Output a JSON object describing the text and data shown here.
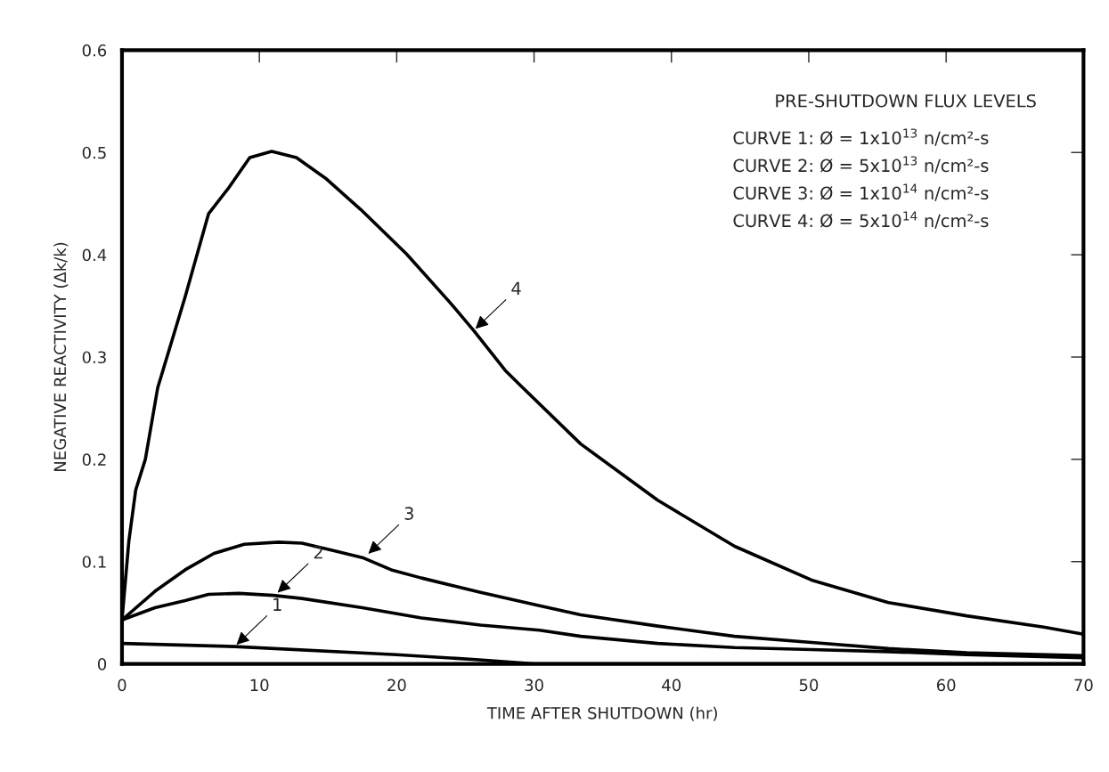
{
  "chart_data": {
    "type": "line",
    "xlabel": "TIME AFTER SHUTDOWN (hr)",
    "ylabel": "NEGATIVE REACTIVITY (Δk/k)",
    "xlim": [
      0,
      70
    ],
    "xticks": [
      0,
      10,
      20,
      30,
      40,
      50,
      60,
      70
    ],
    "ylim": [
      0,
      0.6
    ],
    "yticks": [
      0,
      0.1,
      0.2,
      0.3,
      0.4,
      0.5,
      0.6
    ],
    "grid": false,
    "legend": false,
    "marker": "none",
    "line_style": "solid",
    "series": [
      {
        "color": "#000000",
        "x": [
          0,
          8.2,
          20,
          26,
          30,
          70
        ],
        "values": [
          0.02,
          0.017,
          0.009,
          0.004,
          0,
          0
        ]
      },
      {
        "color": "#000000",
        "x": [
          0,
          2.4,
          4.6,
          6.3,
          8.5,
          11,
          13.1,
          17.5,
          21.8,
          26.1,
          30.4,
          33.4,
          39,
          44.6,
          50.2,
          55.8,
          61.5,
          70
        ],
        "values": [
          0.043,
          0.055,
          0.062,
          0.068,
          0.069,
          0.067,
          0.064,
          0.055,
          0.045,
          0.038,
          0.033,
          0.027,
          0.02,
          0.016,
          0.014,
          0.012,
          0.009,
          0.006
        ]
      },
      {
        "color": "#000000",
        "x": [
          0,
          2.4,
          4.6,
          6.7,
          8.9,
          11.4,
          13.1,
          15.3,
          17.5,
          19.6,
          21.8,
          26.1,
          30.4,
          33.4,
          39,
          44.6,
          50.2,
          55.8,
          61.5,
          70
        ],
        "values": [
          0.043,
          0.071,
          0.092,
          0.108,
          0.117,
          0.119,
          0.118,
          0.111,
          0.104,
          0.092,
          0.084,
          0.07,
          0.057,
          0.048,
          0.037,
          0.027,
          0.021,
          0.015,
          0.011,
          0.008
        ]
      },
      {
        "color": "#000000",
        "x": [
          0,
          0.5,
          1,
          1.7,
          2.6,
          4.6,
          6.3,
          7.8,
          9.3,
          10.9,
          12.7,
          14.8,
          17.4,
          20.7,
          23.9,
          25.6,
          27.9,
          29.1,
          33.4,
          39,
          44.6,
          50.2,
          55.8,
          61.5,
          67.1,
          70
        ],
        "values": [
          0.043,
          0.12,
          0.17,
          0.2,
          0.27,
          0.359,
          0.44,
          0.466,
          0.495,
          0.501,
          0.495,
          0.475,
          0.444,
          0.401,
          0.353,
          0.326,
          0.287,
          0.271,
          0.215,
          0.16,
          0.115,
          0.082,
          0.06,
          0.047,
          0.036,
          0.029
        ]
      }
    ],
    "annotations": [
      "PRE-SHUTDOWN FLUX LEVELS",
      "CURVE 1: Ø = 1x10$^{13}$ n/cm²-s",
      "CURVE 2: Ø = 5x10$^{13}$ n/cm²-s",
      "CURVE 3: Ø = 1x10$^{14}$ n/cm²-s",
      "CURVE 4: Ø = 5x10$^{14}$ n/cm²-s",
      {
        "text": "1",
        "x": 8.2,
        "y": 0.017
      },
      {
        "text": "2",
        "x": 11.2,
        "y": 0.068
      },
      {
        "text": "3",
        "x": 17.8,
        "y": 0.106
      },
      {
        "text": "4",
        "x": 25.6,
        "y": 0.326
      }
    ]
  }
}
